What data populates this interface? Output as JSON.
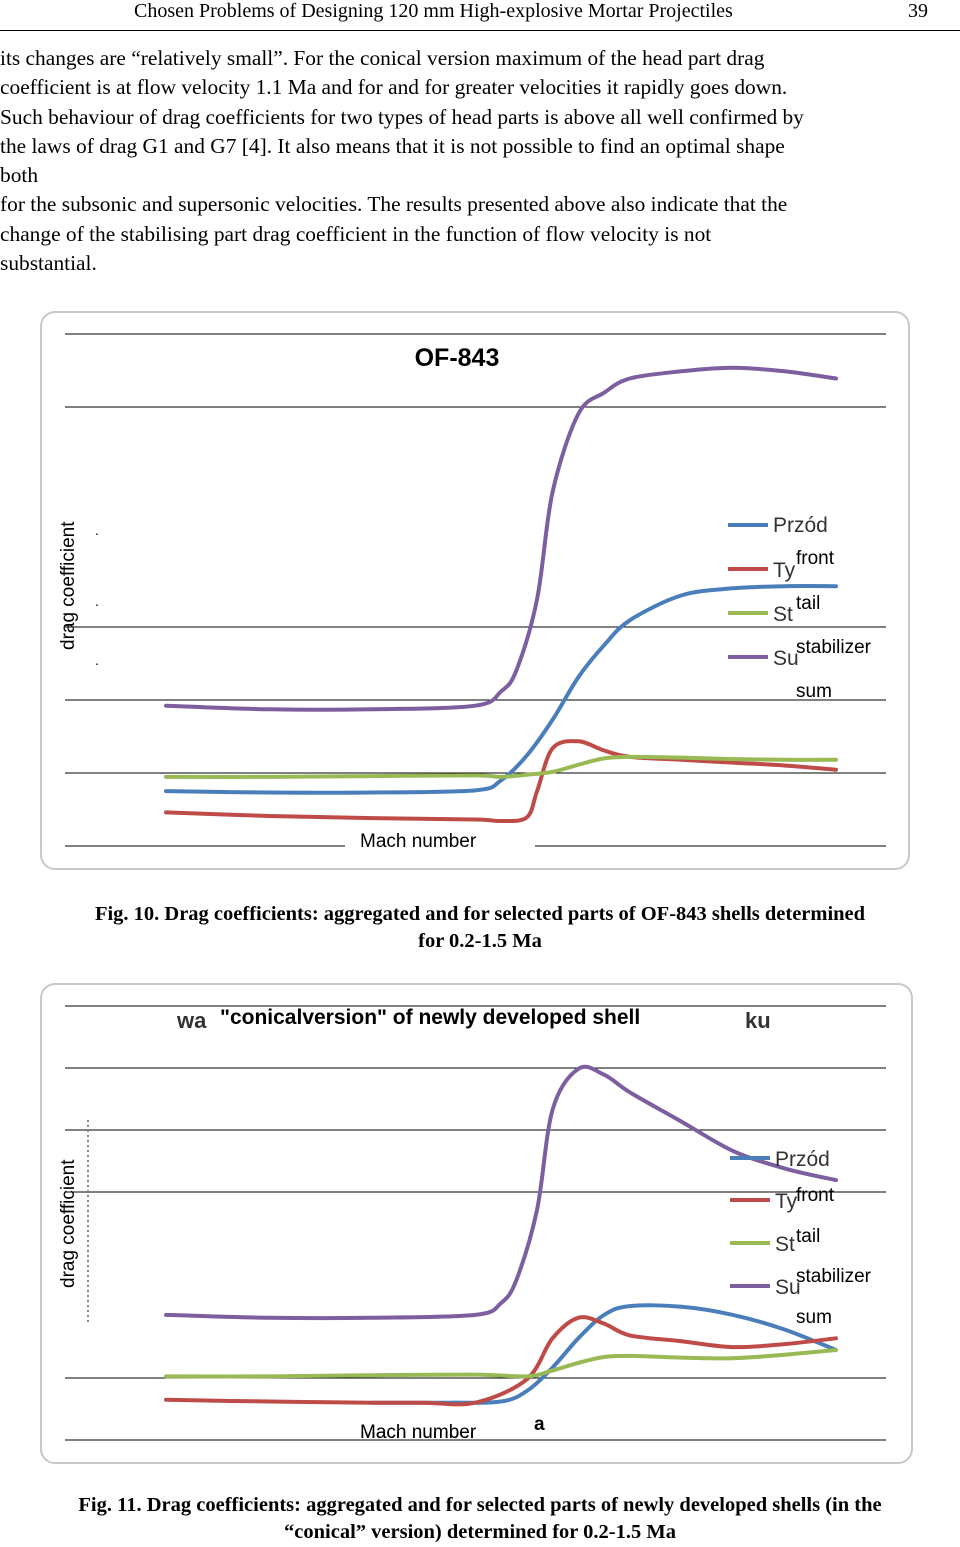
{
  "header": {
    "title": "Chosen Problems of Designing 120 mm High-explosive Mortar Projectiles",
    "page_number": "39"
  },
  "body": {
    "paragraph_lines": [
      "its changes are “relatively small”. For the conical version maximum of the head part drag",
      "coefficient is at flow velocity 1.1 Ma and for and for greater velocities it rapidly goes down.",
      "Such behaviour of drag coefficients for two types of head parts is above all well confirmed by",
      "the laws of drag G1 and G7 [4]. It also means that it is not possible to find an optimal shape",
      "both",
      "for the subsonic and supersonic velocities. The results presented above also indicate that the",
      "change of the stabilising part drag coefficient in the function of flow velocity is not",
      "substantial."
    ]
  },
  "colors": {
    "front": "#4a7ebb",
    "tail": "#be4b48",
    "stabilizer": "#98b954",
    "sum": "#7d5fa0",
    "frame": "#c8c8c8"
  },
  "figure10": {
    "caption_line1": "Fig. 10. Drag coefficients: aggregated and for selected parts of OF-843 shells determined",
    "caption_line2": "for 0.2-1.5 Ma",
    "chart_data": {
      "type": "line",
      "title": "OF-843",
      "xlabel": "Mach number",
      "ylabel": "drag coefficient",
      "xlim": [
        0.2,
        1.5
      ],
      "ylim": [
        0,
        0.7
      ],
      "grid": true,
      "legend": "right",
      "legend_labels_original": [
        "Przód",
        "Ty",
        "St",
        "Su"
      ],
      "legend_labels_english": [
        "front",
        "tail",
        "stabilizer",
        "sum"
      ],
      "series": [
        {
          "name": "front",
          "x": [
            0.2,
            0.4,
            0.6,
            0.8,
            0.85,
            0.9,
            0.95,
            1.0,
            1.05,
            1.1,
            1.2,
            1.3,
            1.4,
            1.5
          ],
          "y": [
            0.08,
            0.078,
            0.078,
            0.081,
            0.095,
            0.13,
            0.18,
            0.24,
            0.285,
            0.32,
            0.355,
            0.365,
            0.368,
            0.368
          ]
        },
        {
          "name": "tail",
          "x": [
            0.2,
            0.4,
            0.6,
            0.8,
            0.85,
            0.9,
            0.92,
            0.95,
            1.0,
            1.05,
            1.1,
            1.2,
            1.3,
            1.4,
            1.5
          ],
          "y": [
            0.05,
            0.045,
            0.042,
            0.04,
            0.038,
            0.043,
            0.08,
            0.14,
            0.15,
            0.137,
            0.128,
            0.124,
            0.12,
            0.116,
            0.11
          ]
        },
        {
          "name": "stabilizer",
          "x": [
            0.2,
            0.4,
            0.6,
            0.8,
            0.85,
            0.9,
            0.95,
            1.0,
            1.05,
            1.1,
            1.2,
            1.3,
            1.4,
            1.5
          ],
          "y": [
            0.1,
            0.1,
            0.101,
            0.102,
            0.1,
            0.103,
            0.107,
            0.117,
            0.126,
            0.128,
            0.127,
            0.125,
            0.124,
            0.124
          ]
        },
        {
          "name": "sum",
          "x": [
            0.2,
            0.4,
            0.6,
            0.8,
            0.85,
            0.88,
            0.92,
            0.95,
            1.0,
            1.05,
            1.1,
            1.2,
            1.3,
            1.4,
            1.5
          ],
          "y": [
            0.2,
            0.195,
            0.195,
            0.2,
            0.22,
            0.25,
            0.35,
            0.5,
            0.61,
            0.64,
            0.66,
            0.67,
            0.675,
            0.67,
            0.66
          ]
        }
      ]
    }
  },
  "figure11": {
    "title_fragment_left": "wa",
    "title_fragment_right": "ku",
    "stray_label": "a",
    "caption_line1": "Fig. 11. Drag coefficients: aggregated and for selected parts of newly developed shells (in the",
    "caption_line2": "“conical” version) determined for 0.2-1.5 Ma",
    "chart_data": {
      "type": "line",
      "title": "\"conicalversion\" of newly developed shell",
      "xlabel": "Mach number",
      "ylabel": "drag coefficient",
      "xlim": [
        0.2,
        1.5
      ],
      "ylim": [
        0,
        0.7
      ],
      "grid": true,
      "legend": "right",
      "legend_labels_original": [
        "Przód",
        "Ty",
        "St",
        "Su"
      ],
      "legend_labels_english": [
        "front",
        "tail",
        "stabilizer",
        "sum"
      ],
      "series": [
        {
          "name": "front",
          "x": [
            0.6,
            0.75,
            0.85,
            0.9,
            0.95,
            1.0,
            1.05,
            1.1,
            1.2,
            1.3,
            1.4,
            1.5
          ],
          "y": [
            0.05,
            0.05,
            0.052,
            0.07,
            0.11,
            0.16,
            0.2,
            0.215,
            0.214,
            0.2,
            0.175,
            0.14
          ]
        },
        {
          "name": "tail",
          "x": [
            0.2,
            0.4,
            0.6,
            0.7,
            0.8,
            0.9,
            0.95,
            1.0,
            1.05,
            1.1,
            1.2,
            1.3,
            1.4,
            1.5
          ],
          "y": [
            0.055,
            0.052,
            0.05,
            0.05,
            0.05,
            0.09,
            0.16,
            0.195,
            0.185,
            0.165,
            0.155,
            0.145,
            0.15,
            0.16
          ]
        },
        {
          "name": "stabilizer",
          "x": [
            0.2,
            0.4,
            0.6,
            0.8,
            0.9,
            0.95,
            1.0,
            1.05,
            1.1,
            1.2,
            1.3,
            1.4,
            1.5
          ],
          "y": [
            0.095,
            0.095,
            0.097,
            0.098,
            0.095,
            0.105,
            0.118,
            0.128,
            0.13,
            0.127,
            0.126,
            0.132,
            0.14
          ]
        },
        {
          "name": "sum",
          "x": [
            0.2,
            0.4,
            0.6,
            0.8,
            0.85,
            0.88,
            0.92,
            0.95,
            1.0,
            1.05,
            1.1,
            1.2,
            1.3,
            1.4,
            1.5
          ],
          "y": [
            0.2,
            0.195,
            0.195,
            0.2,
            0.22,
            0.26,
            0.38,
            0.55,
            0.62,
            0.61,
            0.58,
            0.53,
            0.48,
            0.45,
            0.43
          ]
        }
      ]
    }
  }
}
